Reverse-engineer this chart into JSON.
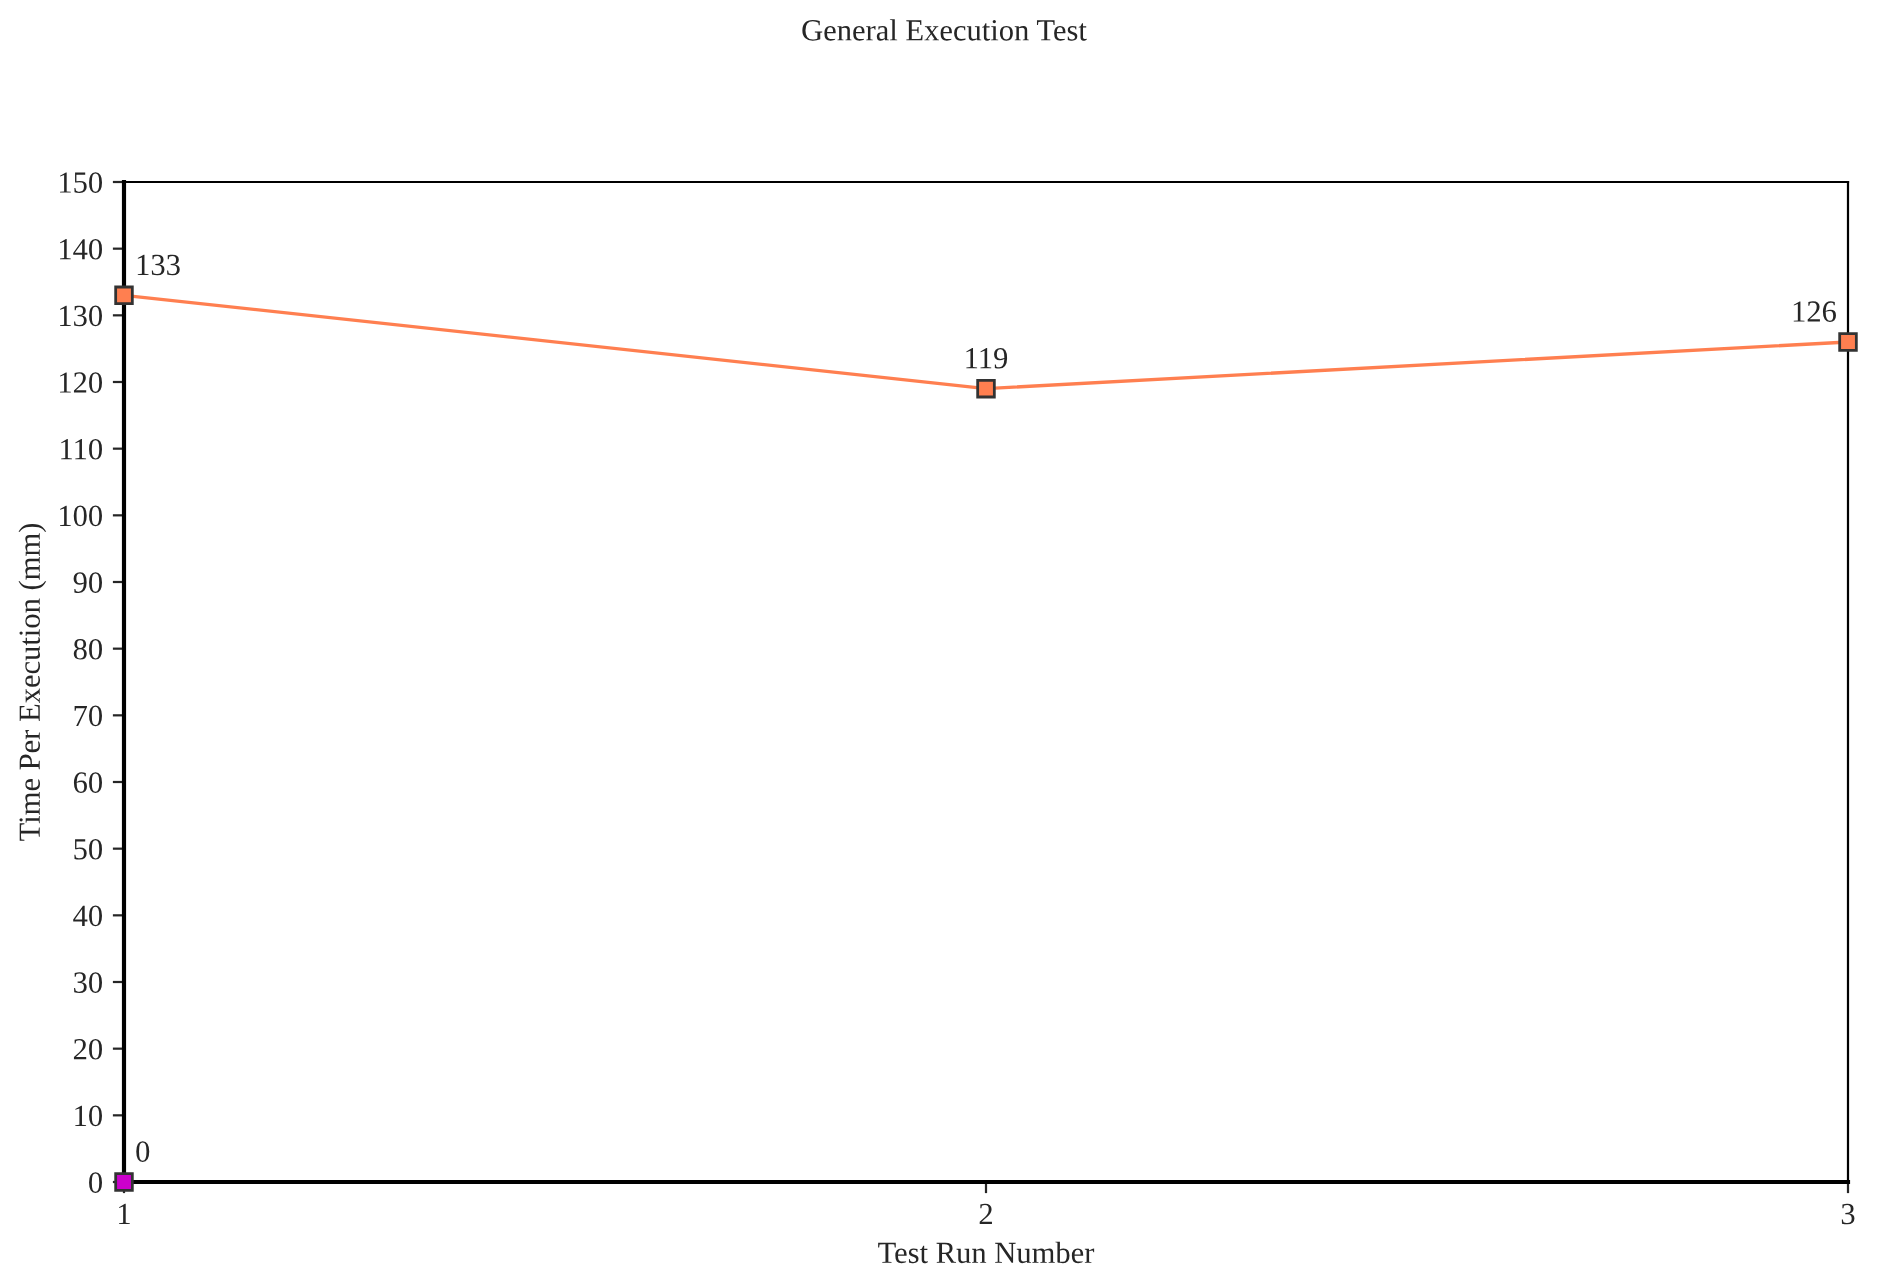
{
  "chart_data": {
    "type": "line",
    "title": "General Execution Test",
    "xlabel": "Test Run Number",
    "ylabel": "Time Per Execution (mm)",
    "categories": [
      "1",
      "2",
      "3"
    ],
    "series": [
      {
        "color": "#ff7f50",
        "values": [
          133,
          119,
          126
        ]
      },
      {
        "color": "#cc00cc",
        "values": [
          0,
          null,
          null
        ]
      }
    ],
    "ylim": [
      0,
      150
    ],
    "yticks": [
      0,
      10,
      20,
      30,
      40,
      50,
      60,
      70,
      80,
      90,
      100,
      110,
      120,
      130,
      140,
      150
    ],
    "data_labels": true,
    "marker": "square",
    "line_style": "solid",
    "grid": false
  }
}
